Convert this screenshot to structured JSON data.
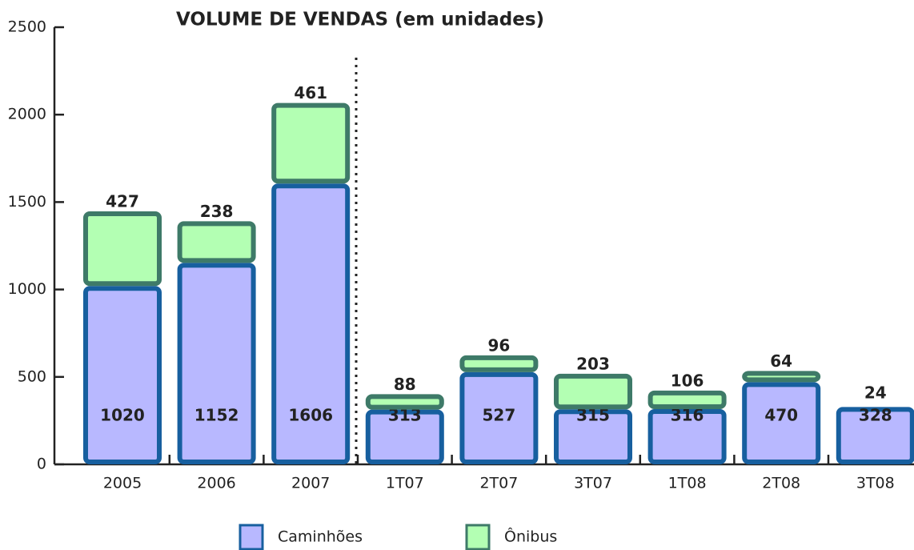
{
  "chart_data": {
    "type": "stacked_bar",
    "title": "VOLUME DE VENDAS (em unidades)",
    "categories": [
      "2005",
      "2006",
      "2007",
      "1T07",
      "2T07",
      "3T07",
      "1T08",
      "2T08",
      "3T08"
    ],
    "series": [
      {
        "name": "Caminhões",
        "color": "#b8b8ff",
        "edge": "#175f9f",
        "values": [
          1020,
          1152,
          1606,
          313,
          527,
          315,
          316,
          470,
          328
        ]
      },
      {
        "name": "Ônibus",
        "color": "#b3ffb3",
        "edge": "#3e7a68",
        "values": [
          427,
          238,
          461,
          88,
          96,
          203,
          106,
          64,
          24
        ]
      }
    ],
    "ylim": [
      0,
      2500
    ],
    "yticks": [
      0,
      500,
      1000,
      1500,
      2000,
      2500
    ]
  }
}
